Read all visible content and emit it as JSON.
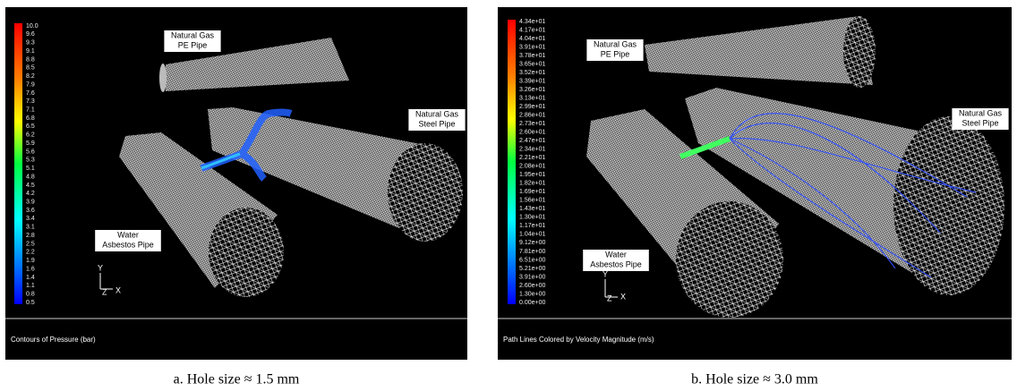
{
  "panels": [
    {
      "legend_labels": [
        "10.0",
        "9.6",
        "9.3",
        "9.1",
        "8.8",
        "8.5",
        "8.2",
        "7.9",
        "7.6",
        "7.3",
        "7.1",
        "6.8",
        "6.5",
        "6.2",
        "5.9",
        "5.6",
        "5.3",
        "5.1",
        "4.8",
        "4.5",
        "4.2",
        "3.9",
        "3.6",
        "3.4",
        "3.1",
        "2.8",
        "2.5",
        "2.2",
        "1.9",
        "1.6",
        "1.4",
        "1.1",
        "0.8",
        "0.5"
      ],
      "pipe_labels": [
        {
          "lines": [
            "Natural Gas",
            "PE Pipe"
          ]
        },
        {
          "lines": [
            "Natural Gas",
            "Steel Pipe"
          ]
        },
        {
          "lines": [
            "Water",
            "Asbestos Pipe"
          ]
        }
      ],
      "axes": {
        "y": "Y",
        "z": "Z",
        "x": "X"
      },
      "caption_bar": "Contours of Pressure (bar)",
      "subcaption": "a. Hole size ≈ 1.5 mm"
    },
    {
      "legend_labels": [
        "4.34e+01",
        "4.17e+01",
        "4.04e+01",
        "3.91e+01",
        "3.78e+01",
        "3.65e+01",
        "3.52e+01",
        "3.39e+01",
        "3.26e+01",
        "3.13e+01",
        "2.99e+01",
        "2.86e+01",
        "2.73e+01",
        "2.60e+01",
        "2.47e+01",
        "2.34e+01",
        "2.21e+01",
        "2.08e+01",
        "1.95e+01",
        "1.82e+01",
        "1.69e+01",
        "1.56e+01",
        "1.43e+01",
        "1.30e+01",
        "1.17e+01",
        "1.04e+01",
        "9.12e+00",
        "7.81e+00",
        "6.51e+00",
        "5.21e+00",
        "3.91e+00",
        "2.60e+00",
        "1.30e+00",
        "0.00e+00"
      ],
      "pipe_labels": [
        {
          "lines": [
            "Natural Gas",
            "PE Pipe"
          ]
        },
        {
          "lines": [
            "Natural Gas",
            "Steel Pipe"
          ]
        },
        {
          "lines": [
            "Water",
            "Asbestos Pipe"
          ]
        }
      ],
      "axes": {
        "y": "Y",
        "z": "Z",
        "x": "X"
      },
      "caption_bar": "Path Lines Colored by Velocity Magnitude (m/s)",
      "subcaption": "b. Hole size ≈ 3.0 mm"
    }
  ]
}
